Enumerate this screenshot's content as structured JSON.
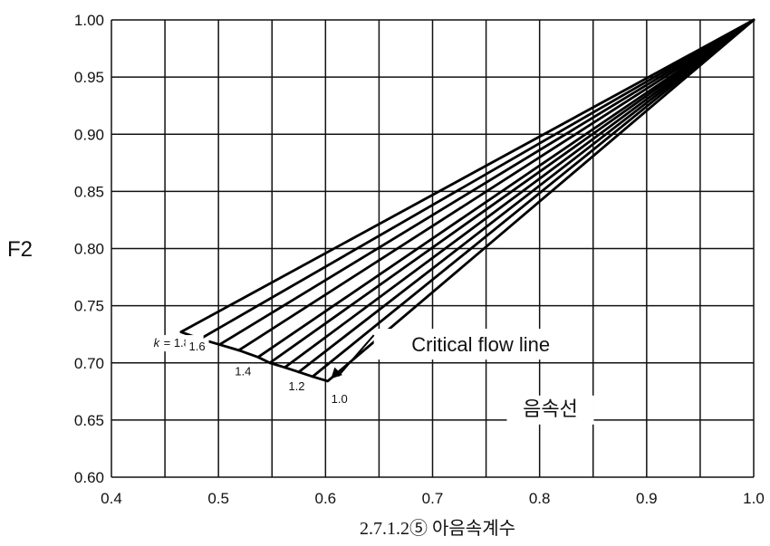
{
  "chart_data": {
    "type": "line",
    "title": "",
    "xlabel": "",
    "ylabel": "F2",
    "caption": "2.7.1.2⑤ 아음속계수",
    "xlim": [
      0.4,
      1.0
    ],
    "ylim": [
      0.6,
      1.0
    ],
    "x_ticks": [
      "0.4",
      "0.5",
      "0.6",
      "0.7",
      "0.8",
      "0.9",
      "1.0"
    ],
    "y_ticks": [
      "0.60",
      "0.65",
      "0.70",
      "0.75",
      "0.80",
      "0.85",
      "0.90",
      "0.95",
      "1.00"
    ],
    "grid_x_step": 0.05,
    "grid_y_step": 0.05,
    "grid": true,
    "series": [
      {
        "name": "k = 1.8",
        "start": [
          0.465,
          0.727
        ]
      },
      {
        "name": "1.6",
        "start": [
          0.483,
          0.721
        ]
      },
      {
        "name": "",
        "start": [
          0.501,
          0.716
        ]
      },
      {
        "name": "",
        "start": [
          0.519,
          0.711
        ]
      },
      {
        "name": "",
        "start": [
          0.537,
          0.705
        ]
      },
      {
        "name": "1.4",
        "start": [
          0.548,
          0.7
        ]
      },
      {
        "name": "",
        "start": [
          0.562,
          0.696
        ]
      },
      {
        "name": "1.2",
        "start": [
          0.575,
          0.692
        ]
      },
      {
        "name": "",
        "start": [
          0.588,
          0.688
        ]
      },
      {
        "name": "1.0",
        "start": [
          0.602,
          0.684
        ]
      }
    ],
    "series_end": [
      1.0,
      1.0
    ],
    "k_prefix": "k",
    "k_labels": [
      {
        "text": "= 1.8",
        "x": 0.453,
        "y": 0.714
      },
      {
        "text": "1.6",
        "x": 0.48,
        "y": 0.711
      },
      {
        "text": "1.4",
        "x": 0.523,
        "y": 0.689
      },
      {
        "text": "1.2",
        "x": 0.573,
        "y": 0.676
      },
      {
        "text": "1.0",
        "x": 0.613,
        "y": 0.665
      }
    ],
    "annotations": [
      {
        "text": "Critical flow line",
        "x": 0.745,
        "y": 0.71,
        "arrow_to": [
          0.605,
          0.686
        ]
      },
      {
        "text": "음속선",
        "x": 0.81,
        "y": 0.654
      }
    ]
  }
}
